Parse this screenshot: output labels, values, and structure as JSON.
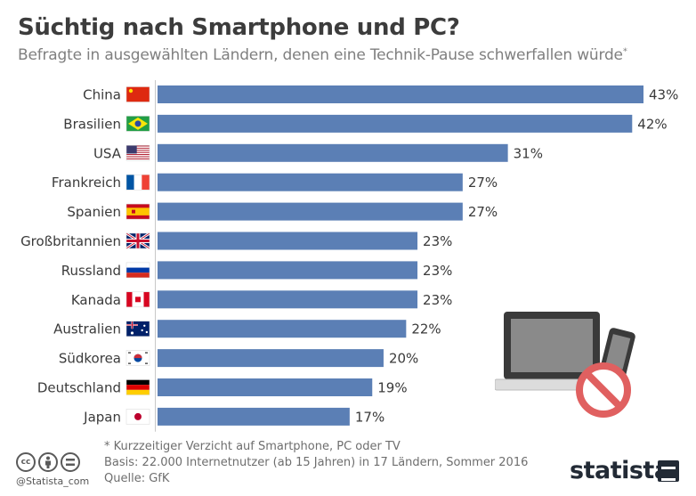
{
  "chart_data": {
    "type": "bar",
    "orientation": "horizontal",
    "title": "Süchtig nach Smartphone und PC?",
    "subtitle": "Befragte in ausgewählten Ländern, denen eine Technik-Pause schwerfallen würde",
    "subtitle_mark": "*",
    "categories": [
      "China",
      "Brasilien",
      "USA",
      "Frankreich",
      "Spanien",
      "Großbritannien",
      "Russland",
      "Kanada",
      "Australien",
      "Südkorea",
      "Deutschland",
      "Japan"
    ],
    "flags": [
      "flag-china",
      "flag-brazil",
      "flag-usa",
      "flag-france",
      "flag-spain",
      "flag-uk",
      "flag-russia",
      "flag-canada",
      "flag-australia",
      "flag-south-korea",
      "flag-germany",
      "flag-japan"
    ],
    "values": [
      43,
      42,
      31,
      27,
      27,
      23,
      23,
      23,
      22,
      20,
      19,
      17
    ],
    "value_suffix": "%",
    "xlim": [
      0,
      43
    ],
    "bar_color": "#5b7fb5",
    "grid": false,
    "legend": "none"
  },
  "notes": {
    "footnote": "* Kurzzeitiger Verzicht auf Smartphone, PC oder TV",
    "basis": "Basis: 22.000 Internetnutzer (ab 15 Jahren) in 17 Ländern, Sommer 2016",
    "source": "Quelle: GfK"
  },
  "footer": {
    "handle": "@Statista_com",
    "brand": "statista",
    "cc_icons": [
      "cc",
      "by",
      "nd"
    ]
  },
  "illustration": {
    "name": "laptop-phone-prohibited-icon",
    "laptop_color": "#3a3a3a",
    "screen_color": "#8a8a8a",
    "prohibited_color": "#e06060"
  }
}
